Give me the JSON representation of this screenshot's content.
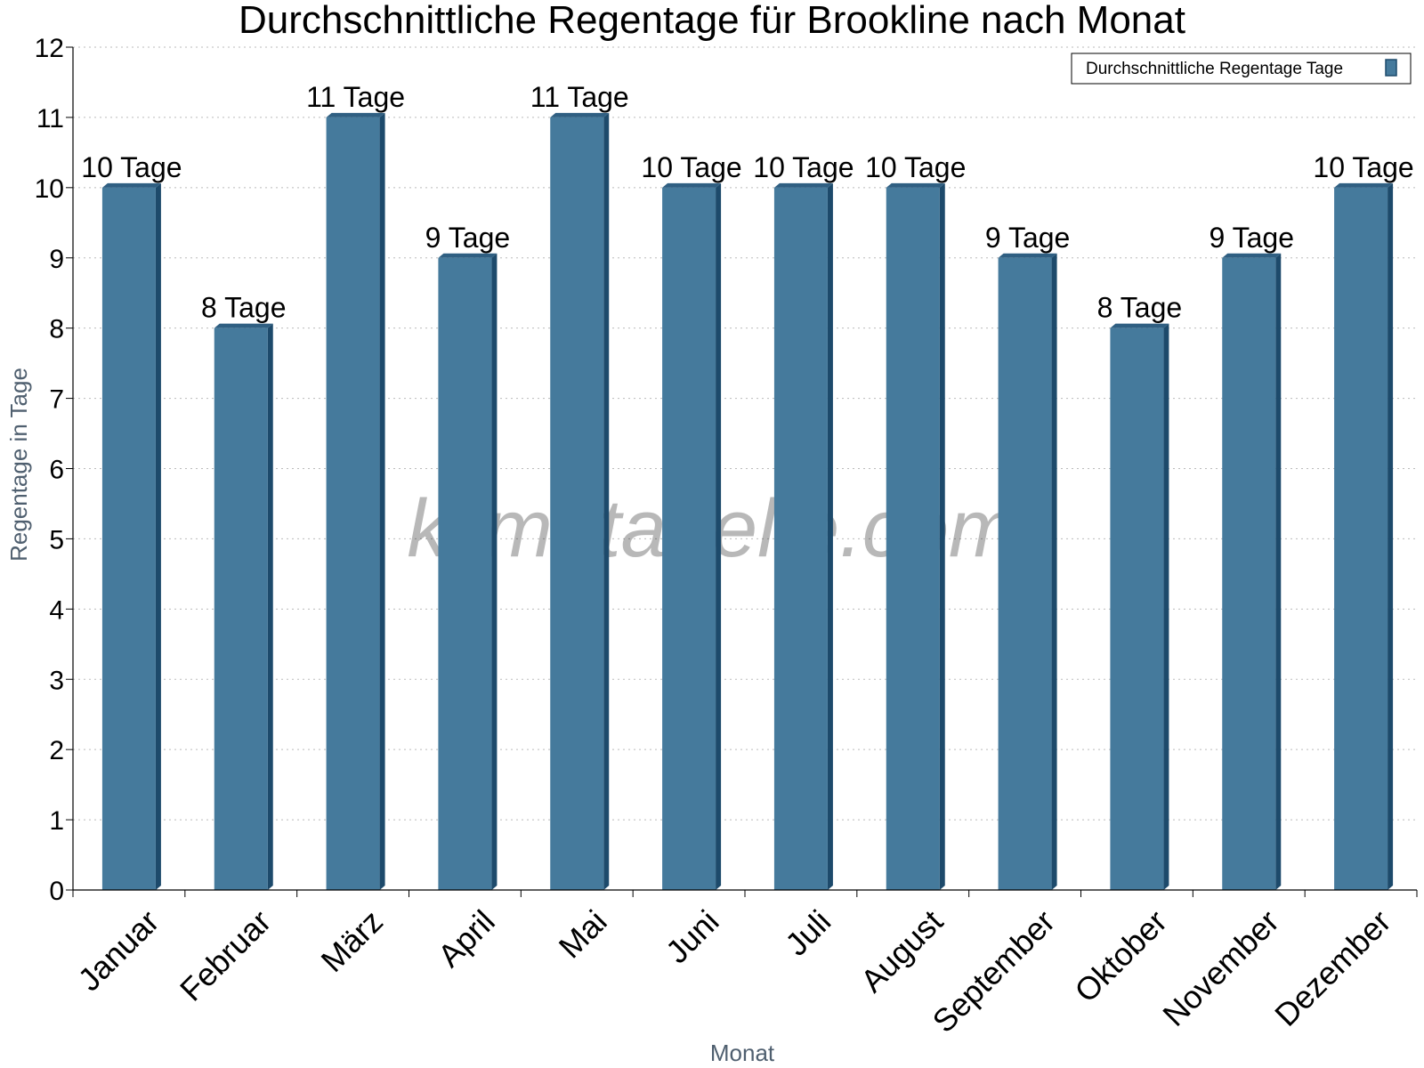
{
  "chart_data": {
    "type": "bar",
    "title": "Durchschnittliche Regentage für Brookline nach Monat",
    "xlabel": "Monat",
    "ylabel": "Regentage in Tage",
    "categories": [
      "Januar",
      "Februar",
      "März",
      "April",
      "Mai",
      "Juni",
      "Juli",
      "August",
      "September",
      "Oktober",
      "November",
      "Dezember"
    ],
    "series": [
      {
        "name": "Durchschnittliche Regentage Tage",
        "values": [
          10,
          8,
          11,
          9,
          11,
          10,
          10,
          10,
          9,
          8,
          9,
          10
        ],
        "color": "#457a9c"
      }
    ],
    "data_labels": [
      "10 Tage",
      "8 Tage",
      "11 Tage",
      "9 Tage",
      "11 Tage",
      "10 Tage",
      "10 Tage",
      "10 Tage",
      "9 Tage",
      "8 Tage",
      "9 Tage",
      "10 Tage"
    ],
    "ylim": [
      0,
      12
    ],
    "yticks": [
      "0",
      "1",
      "2",
      "3",
      "4",
      "5",
      "6",
      "7",
      "8",
      "9",
      "10",
      "11",
      "12"
    ],
    "grid": "horizontal dotted",
    "legend_position": "top-right"
  },
  "watermark": "klimatabelle.com",
  "colors": {
    "bar_front": "#457a9c",
    "bar_side": "#1d4a6b",
    "bar_top": "#2f5f82",
    "grid": "#bbbbbb",
    "axis": "#000000"
  }
}
